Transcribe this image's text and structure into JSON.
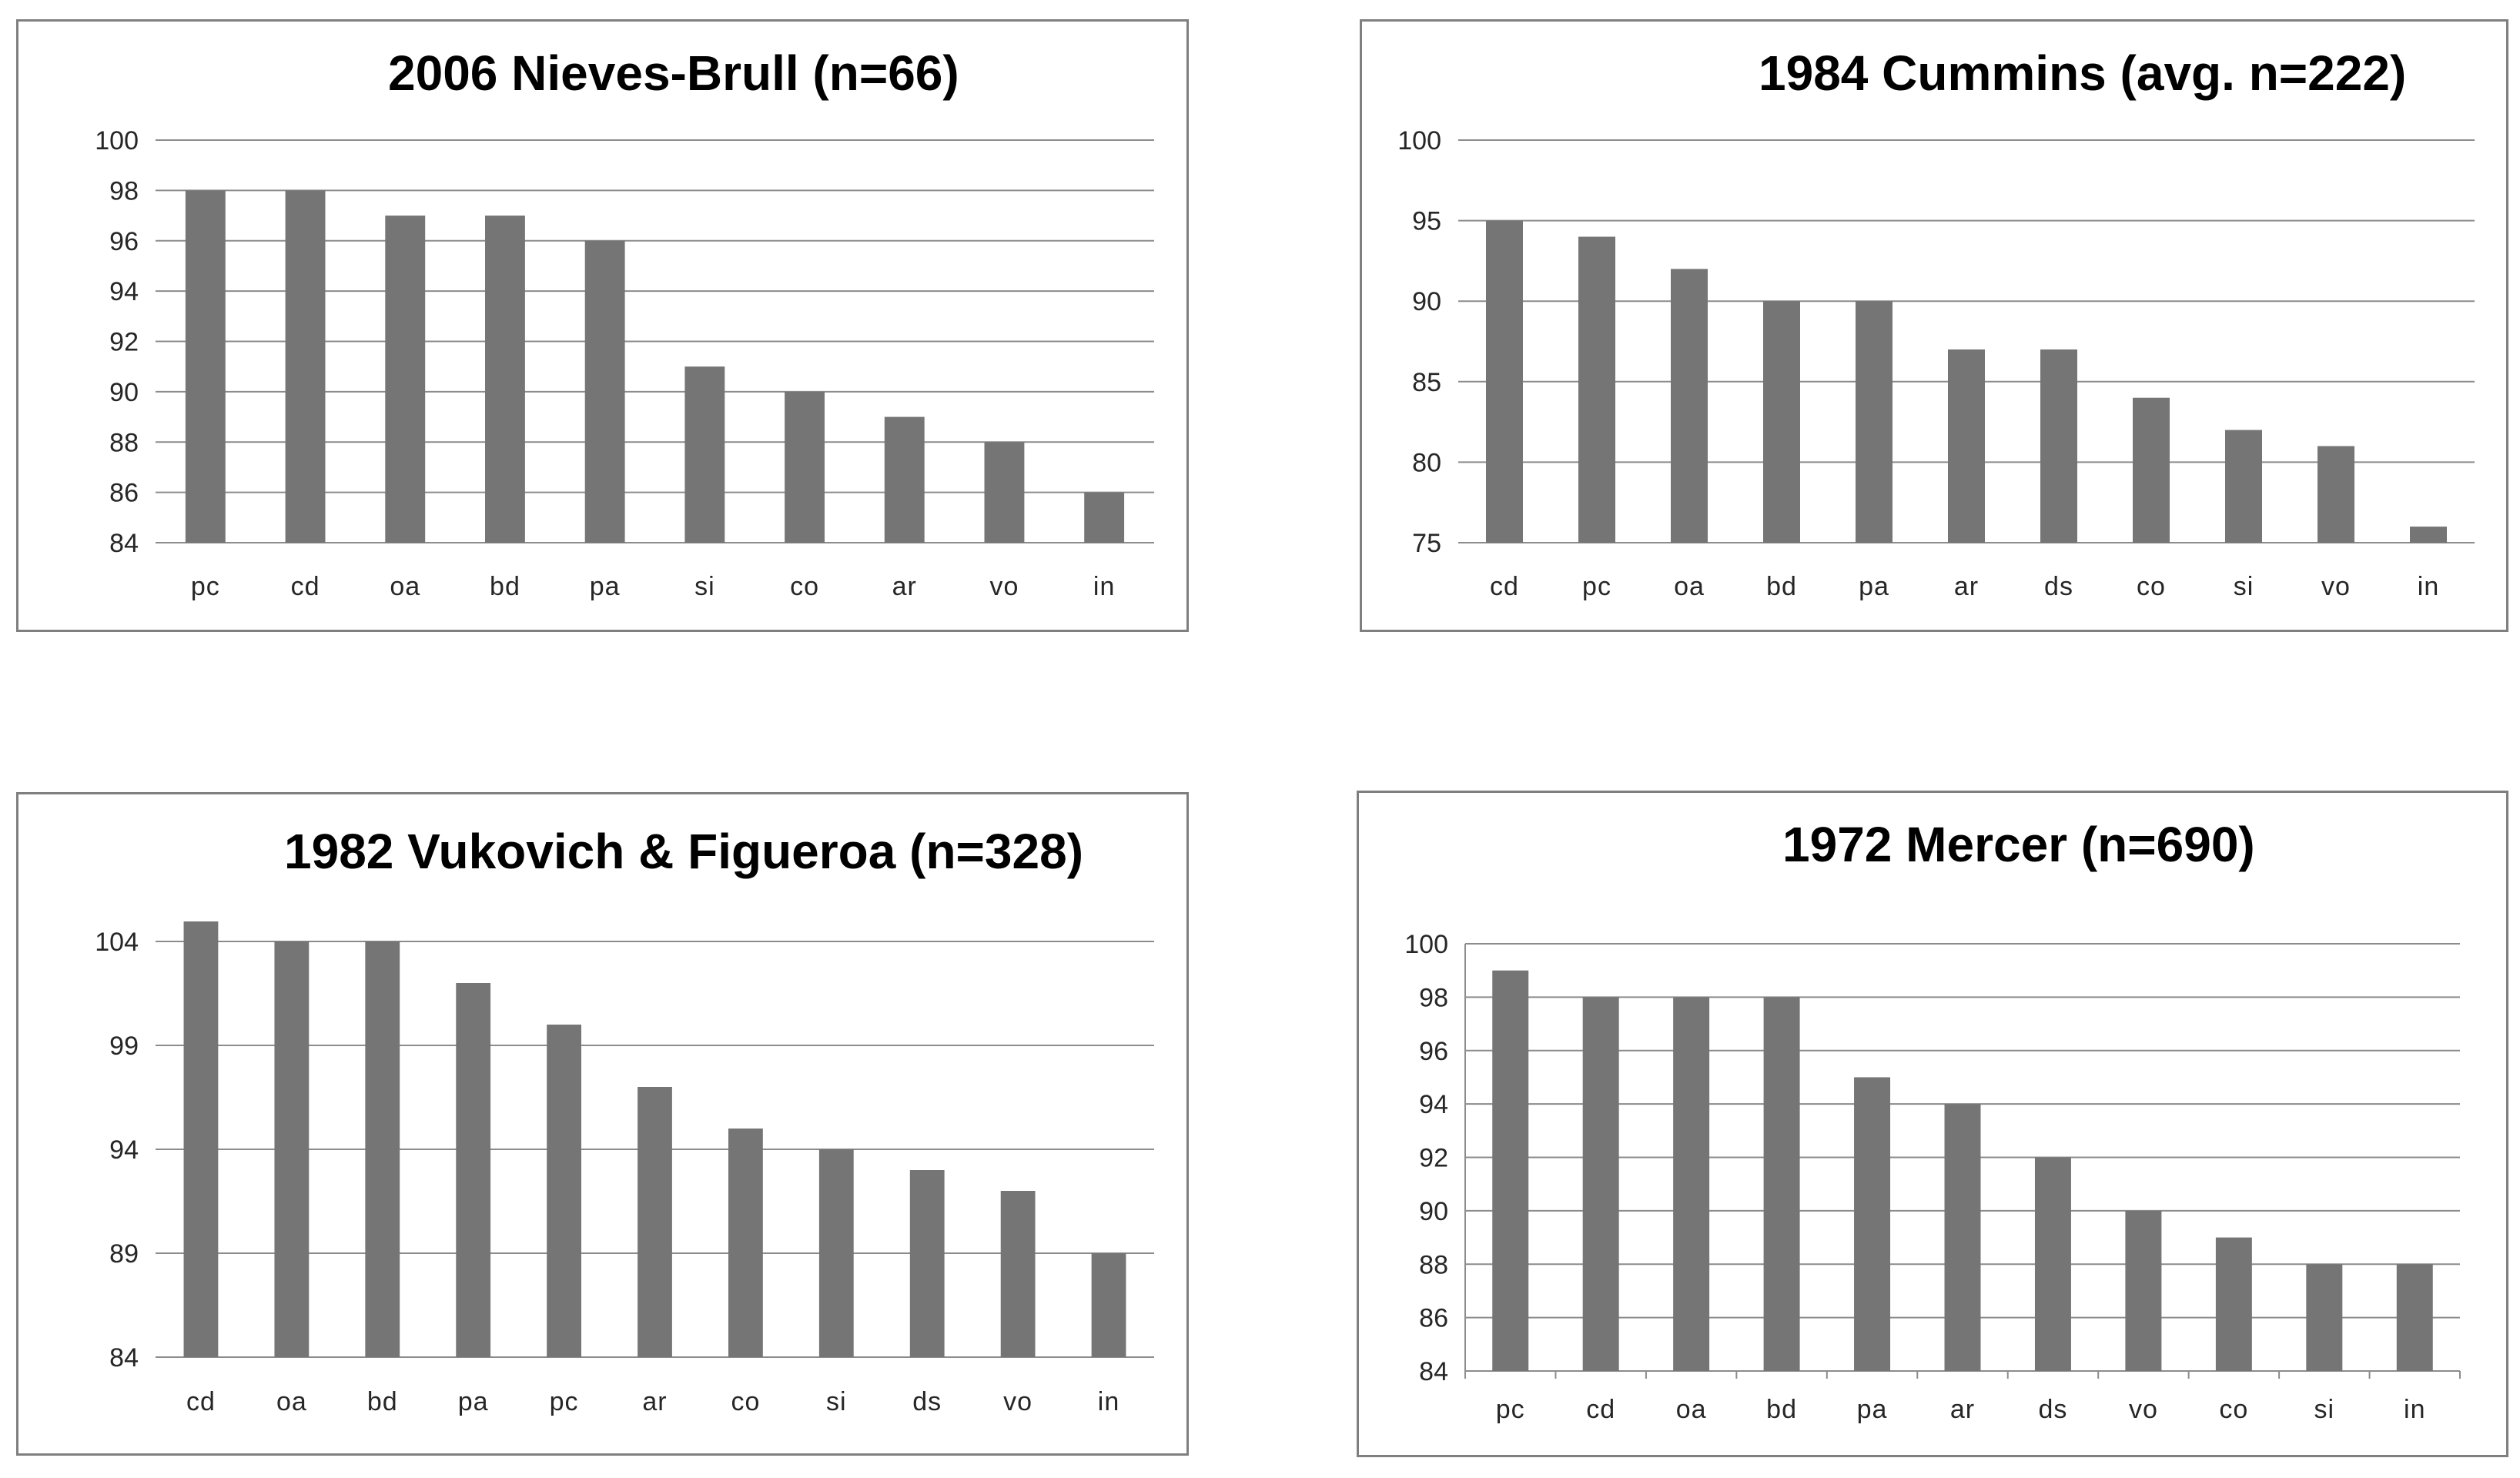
{
  "colors": {
    "bar": "#757575",
    "grid": "#8c8c8c",
    "axis_text": "#262626",
    "border": "#7f7f7f"
  },
  "chart_data": [
    {
      "type": "bar",
      "title": "2006 Nieves-Brull (n=66)",
      "categories": [
        "pc",
        "cd",
        "oa",
        "bd",
        "pa",
        "si",
        "co",
        "ar",
        "vo",
        "in"
      ],
      "values": [
        98,
        98,
        97,
        97,
        96,
        91,
        90,
        89,
        88,
        86
      ],
      "ylim": [
        84,
        100
      ],
      "yticks": [
        84,
        86,
        88,
        90,
        92,
        94,
        96,
        98,
        100
      ],
      "xlabel": "",
      "ylabel": "",
      "grid": true,
      "legend": "none"
    },
    {
      "type": "bar",
      "title": "1984 Cummins (avg. n=222)",
      "categories": [
        "cd",
        "pc",
        "oa",
        "bd",
        "pa",
        "ar",
        "ds",
        "co",
        "si",
        "vo",
        "in"
      ],
      "values": [
        95,
        94,
        92,
        90,
        90,
        87,
        87,
        84,
        82,
        81,
        76
      ],
      "ylim": [
        75,
        100
      ],
      "yticks": [
        75,
        80,
        85,
        90,
        95,
        100
      ],
      "xlabel": "",
      "ylabel": "",
      "grid": true,
      "legend": "none"
    },
    {
      "type": "bar",
      "title": "1982 Vukovich & Figueroa (n=328)",
      "categories": [
        "cd",
        "oa",
        "bd",
        "pa",
        "pc",
        "ar",
        "co",
        "si",
        "ds",
        "vo",
        "in"
      ],
      "values": [
        105,
        104,
        104,
        102,
        100,
        97,
        95,
        94,
        93,
        92,
        89
      ],
      "ylim": [
        84,
        104
      ],
      "yticks": [
        84,
        89,
        94,
        99,
        104
      ],
      "xlabel": "",
      "ylabel": "",
      "grid": true,
      "legend": "none"
    },
    {
      "type": "bar",
      "title": "1972 Mercer (n=690)",
      "categories": [
        "pc",
        "cd",
        "oa",
        "bd",
        "pa",
        "ar",
        "ds",
        "vo",
        "co",
        "si",
        "in"
      ],
      "values": [
        99,
        98,
        98,
        98,
        95,
        94,
        92,
        90,
        89,
        88,
        88
      ],
      "ylim": [
        84,
        100
      ],
      "yticks": [
        84,
        86,
        88,
        90,
        92,
        94,
        96,
        98,
        100
      ],
      "xlabel": "",
      "ylabel": "",
      "grid": true,
      "legend": "none"
    }
  ]
}
